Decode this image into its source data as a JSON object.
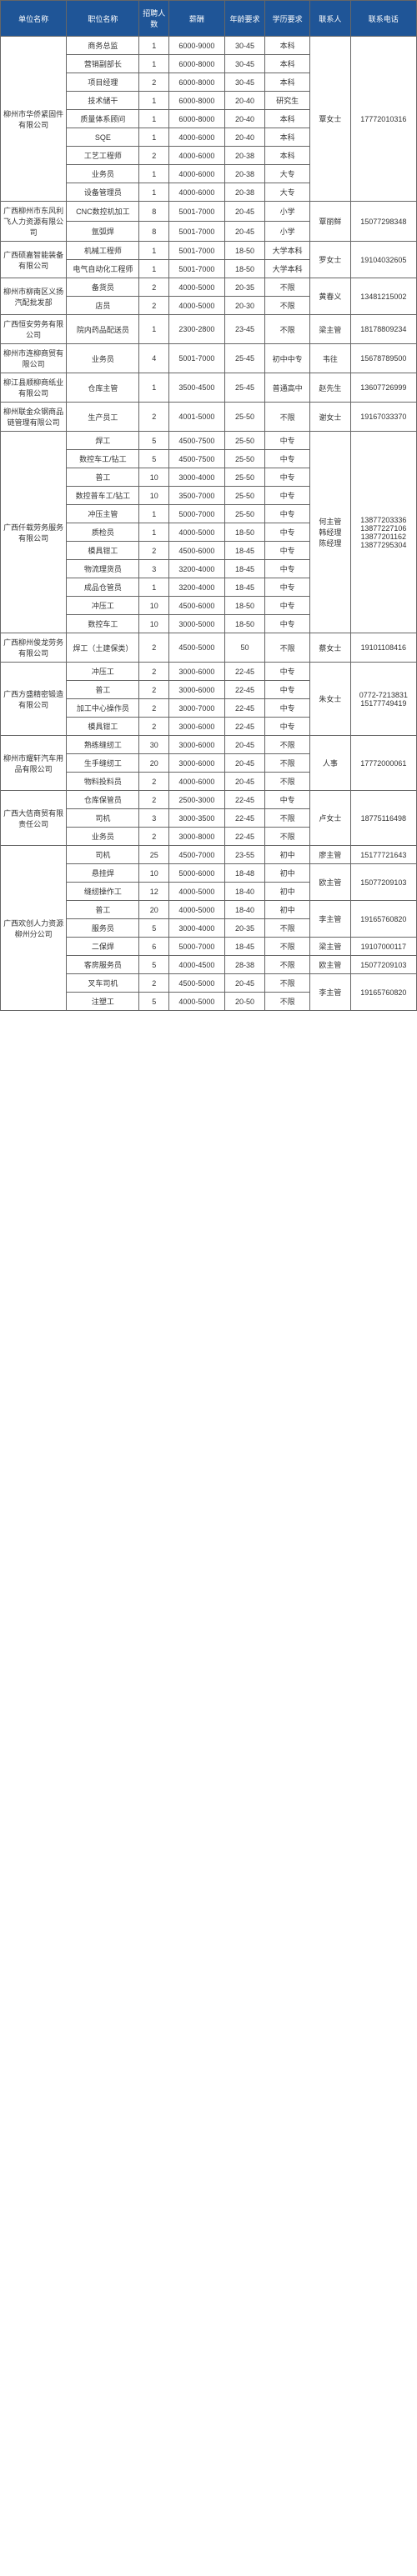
{
  "headers": [
    "单位名称",
    "职位名称",
    "招聘人数",
    "薪酬",
    "年龄要求",
    "学历要求",
    "联系人",
    "联系电话"
  ],
  "groups": [
    {
      "company": "柳州市华侨紧固件有限公司",
      "contact": "覃女士",
      "phone": "17772010316",
      "jobs": [
        {
          "position": "商务总监",
          "count": "1",
          "salary": "6000-9000",
          "age": "30-45",
          "edu": "本科"
        },
        {
          "position": "营销副部长",
          "count": "1",
          "salary": "6000-8000",
          "age": "30-45",
          "edu": "本科"
        },
        {
          "position": "项目经理",
          "count": "2",
          "salary": "6000-8000",
          "age": "30-45",
          "edu": "本科"
        },
        {
          "position": "技术储干",
          "count": "1",
          "salary": "6000-8000",
          "age": "20-40",
          "edu": "研究生"
        },
        {
          "position": "质量体系顾问",
          "count": "1",
          "salary": "6000-8000",
          "age": "20-40",
          "edu": "本科"
        },
        {
          "position": "SQE",
          "count": "1",
          "salary": "4000-6000",
          "age": "20-40",
          "edu": "本科"
        },
        {
          "position": "工艺工程师",
          "count": "2",
          "salary": "4000-6000",
          "age": "20-38",
          "edu": "本科"
        },
        {
          "position": "业务员",
          "count": "1",
          "salary": "4000-6000",
          "age": "20-38",
          "edu": "大专"
        },
        {
          "position": "设备管理员",
          "count": "1",
          "salary": "4000-6000",
          "age": "20-38",
          "edu": "大专"
        }
      ]
    },
    {
      "company": "广西柳州市东风利飞人力资源有限公司",
      "contact": "覃丽鲜",
      "phone": "15077298348",
      "jobs": [
        {
          "position": "CNC数控机加工",
          "count": "8",
          "salary": "5001-7000",
          "age": "20-45",
          "edu": "小学"
        },
        {
          "position": "氩弧焊",
          "count": "8",
          "salary": "5001-7000",
          "age": "20-45",
          "edu": "小学"
        }
      ]
    },
    {
      "company": "广西硕嘉智能装备有限公司",
      "contact": "罗女士",
      "phone": "19104032605",
      "jobs": [
        {
          "position": "机械工程师",
          "count": "1",
          "salary": "5001-7000",
          "age": "18-50",
          "edu": "大学本科"
        },
        {
          "position": "电气自动化工程师",
          "count": "1",
          "salary": "5001-7000",
          "age": "18-50",
          "edu": "大学本科"
        }
      ]
    },
    {
      "company": "柳州市柳南区义扬汽配批发部",
      "contact": "黄春义",
      "phone": "13481215002",
      "jobs": [
        {
          "position": "备货员",
          "count": "2",
          "salary": "4000-5000",
          "age": "20-35",
          "edu": "不限"
        },
        {
          "position": "店员",
          "count": "2",
          "salary": "4000-5000",
          "age": "20-30",
          "edu": "不限"
        }
      ]
    },
    {
      "company": "广西恒安劳务有限公司",
      "contact": "梁主管",
      "phone": "18178809234",
      "jobs": [
        {
          "position": "院内药品配送员",
          "count": "1",
          "salary": "2300-2800",
          "age": "23-45",
          "edu": "不限"
        }
      ]
    },
    {
      "company": "柳州市连柳商贸有限公司",
      "contact": "韦往",
      "phone": "15678789500",
      "jobs": [
        {
          "position": "业务员",
          "count": "4",
          "salary": "5001-7000",
          "age": "25-45",
          "edu": "初中中专"
        }
      ]
    },
    {
      "company": "柳江县顺柳商纸业有限公司",
      "contact": "赵先生",
      "phone": "13607726999",
      "jobs": [
        {
          "position": "仓库主管",
          "count": "1",
          "salary": "3500-4500",
          "age": "25-45",
          "edu": "普通高中"
        }
      ]
    },
    {
      "company": "柳州联金众钢商品链管理有限公司",
      "contact": "谢女士",
      "phone": "19167033370",
      "jobs": [
        {
          "position": "生产员工",
          "count": "2",
          "salary": "4001-5000",
          "age": "25-50",
          "edu": "不限"
        }
      ]
    },
    {
      "company": "广西仟载劳务服务有限公司",
      "contact": "何主管\n韩经理\n陈经理",
      "phone": "13877203336\n13877227106\n13877201162\n13877295304",
      "jobs": [
        {
          "position": "焊工",
          "count": "5",
          "salary": "4500-7500",
          "age": "25-50",
          "edu": "中专"
        },
        {
          "position": "数控车工/钻工",
          "count": "5",
          "salary": "4500-7500",
          "age": "25-50",
          "edu": "中专"
        },
        {
          "position": "普工",
          "count": "10",
          "salary": "3000-4000",
          "age": "25-50",
          "edu": "中专"
        },
        {
          "position": "数控普车工/钻工",
          "count": "10",
          "salary": "3500-7000",
          "age": "25-50",
          "edu": "中专"
        },
        {
          "position": "冲压主管",
          "count": "1",
          "salary": "5000-7000",
          "age": "25-50",
          "edu": "中专"
        },
        {
          "position": "质检员",
          "count": "1",
          "salary": "4000-5000",
          "age": "18-50",
          "edu": "中专"
        },
        {
          "position": "模具钳工",
          "count": "2",
          "salary": "4500-6000",
          "age": "18-45",
          "edu": "中专"
        },
        {
          "position": "物流理货员",
          "count": "3",
          "salary": "3200-4000",
          "age": "18-45",
          "edu": "中专"
        },
        {
          "position": "成品仓管员",
          "count": "1",
          "salary": "3200-4000",
          "age": "18-45",
          "edu": "中专"
        },
        {
          "position": "冲压工",
          "count": "10",
          "salary": "4500-6000",
          "age": "18-50",
          "edu": "中专"
        },
        {
          "position": "数控车工",
          "count": "10",
          "salary": "3000-5000",
          "age": "18-50",
          "edu": "中专"
        }
      ]
    },
    {
      "company": "广西柳州俊龙劳务有限公司",
      "contact": "蔡女士",
      "phone": "19101108416",
      "jobs": [
        {
          "position": "焊工（土建保类）",
          "count": "2",
          "salary": "4500-5000",
          "age": "50",
          "edu": "不限"
        }
      ]
    },
    {
      "company": "广西方盛精密锻造有限公司",
      "contact": "朱女士",
      "phone": "0772-7213831\n15177749419",
      "jobs": [
        {
          "position": "冲压工",
          "count": "2",
          "salary": "3000-6000",
          "age": "22-45",
          "edu": "中专"
        },
        {
          "position": "普工",
          "count": "2",
          "salary": "3000-6000",
          "age": "22-45",
          "edu": "中专"
        },
        {
          "position": "加工中心操作员",
          "count": "2",
          "salary": "3000-7000",
          "age": "22-45",
          "edu": "中专"
        },
        {
          "position": "模具钳工",
          "count": "2",
          "salary": "3000-6000",
          "age": "22-45",
          "edu": "中专"
        }
      ]
    },
    {
      "company": "柳州市耀轩汽车用品有限公司",
      "contact": "人事",
      "phone": "17772000061",
      "jobs": [
        {
          "position": "熟练缝纫工",
          "count": "30",
          "salary": "3000-6000",
          "age": "20-45",
          "edu": "不限"
        },
        {
          "position": "生手缝纫工",
          "count": "20",
          "salary": "3000-6000",
          "age": "20-45",
          "edu": "不限"
        },
        {
          "position": "物料投料员",
          "count": "2",
          "salary": "4000-6000",
          "age": "20-45",
          "edu": "不限"
        }
      ]
    },
    {
      "company": "广西大佶商贸有限责任公司",
      "contact": "卢女士",
      "phone": "18775116498",
      "jobs": [
        {
          "position": "仓库保管员",
          "count": "2",
          "salary": "2500-3000",
          "age": "22-45",
          "edu": "中专"
        },
        {
          "position": "司机",
          "count": "3",
          "salary": "3000-3500",
          "age": "22-45",
          "edu": "不限"
        },
        {
          "position": "业务员",
          "count": "2",
          "salary": "3000-8000",
          "age": "22-45",
          "edu": "不限"
        }
      ]
    },
    {
      "company": "广西欢创人力资源柳州分公司",
      "contact_groups": [
        {
          "contact": "廖主管",
          "phone": "15177721643",
          "indices": [
            0
          ]
        },
        {
          "contact": "欧主管",
          "phone": "15077209103",
          "indices": [
            1,
            2
          ]
        },
        {
          "contact": "李主管",
          "phone": "19165760820",
          "indices": [
            3,
            4
          ]
        },
        {
          "contact": "梁主管",
          "phone": "19107000117",
          "indices": [
            5
          ]
        },
        {
          "contact": "欧主管",
          "phone": "15077209103",
          "indices": [
            6
          ]
        },
        {
          "contact": "李主管",
          "phone": "19165760820",
          "indices": [
            7,
            8
          ]
        }
      ],
      "jobs": [
        {
          "position": "司机",
          "count": "25",
          "salary": "4500-7000",
          "age": "23-55",
          "edu": "初中"
        },
        {
          "position": "悬挂焊",
          "count": "10",
          "salary": "5000-6000",
          "age": "18-48",
          "edu": "初中"
        },
        {
          "position": "缝纫操作工",
          "count": "12",
          "salary": "4000-5000",
          "age": "18-40",
          "edu": "初中"
        },
        {
          "position": "普工",
          "count": "20",
          "salary": "4000-5000",
          "age": "18-40",
          "edu": "初中"
        },
        {
          "position": "服务员",
          "count": "5",
          "salary": "3000-4000",
          "age": "20-35",
          "edu": "不限"
        },
        {
          "position": "二保焊",
          "count": "6",
          "salary": "5000-7000",
          "age": "18-45",
          "edu": "不限"
        },
        {
          "position": "客房服务员",
          "count": "5",
          "salary": "4000-4500",
          "age": "28-38",
          "edu": "不限"
        },
        {
          "position": "叉车司机",
          "count": "2",
          "salary": "4500-5000",
          "age": "20-45",
          "edu": "不限"
        },
        {
          "position": "注塑工",
          "count": "5",
          "salary": "4000-5000",
          "age": "20-50",
          "edu": "不限"
        }
      ]
    }
  ],
  "style": {
    "header_bg": "#1f5597",
    "header_color": "#ffffff",
    "border": "#666666",
    "text": "#333333",
    "cell_bg": "#ffffff"
  }
}
